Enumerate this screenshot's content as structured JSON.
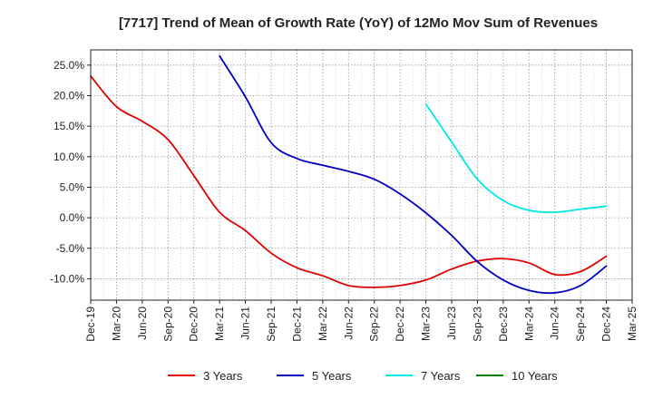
{
  "chart_data": {
    "type": "line",
    "title": "[7717]  Trend of Mean of Growth Rate (YoY) of 12Mo Mov Sum of Revenues",
    "xlabel": "",
    "ylabel": "",
    "x_ticks": [
      "Dec-19",
      "Mar-20",
      "Jun-20",
      "Sep-20",
      "Dec-20",
      "Mar-21",
      "Jun-21",
      "Sep-21",
      "Dec-21",
      "Mar-22",
      "Jun-22",
      "Sep-22",
      "Dec-22",
      "Mar-23",
      "Jun-23",
      "Sep-23",
      "Dec-23",
      "Mar-24",
      "Jun-24",
      "Sep-24",
      "Dec-24",
      "Mar-25"
    ],
    "y_ticks": [
      "25.0%",
      "20.0%",
      "15.0%",
      "10.0%",
      "5.0%",
      "0.0%",
      "-5.0%",
      "-10.0%"
    ],
    "y_tick_values": [
      25,
      20,
      15,
      10,
      5,
      0,
      -5,
      -10
    ],
    "ylim": [
      -13.5,
      27.5
    ],
    "x_range": [
      0,
      21
    ],
    "grid": true,
    "legend_position": "bottom",
    "series": [
      {
        "name": "3 Years",
        "color": "#e00000",
        "x": [
          0,
          1,
          2,
          3,
          4,
          5,
          6,
          7,
          8,
          9,
          10,
          11,
          12,
          13,
          14,
          15,
          16,
          17,
          18,
          19,
          20
        ],
        "values": [
          23.2,
          18.2,
          15.8,
          12.8,
          6.9,
          0.9,
          -2.1,
          -5.8,
          -8.2,
          -9.5,
          -11.1,
          -11.4,
          -11.1,
          -10.2,
          -8.4,
          -7.1,
          -6.7,
          -7.4,
          -9.3,
          -8.8,
          -6.3
        ]
      },
      {
        "name": "5 Years",
        "color": "#0000c0",
        "x": [
          5,
          6,
          7,
          8,
          9,
          10,
          11,
          12,
          13,
          14,
          15,
          16,
          17,
          18,
          19,
          20
        ],
        "values": [
          26.5,
          19.8,
          12.3,
          9.7,
          8.6,
          7.6,
          6.3,
          3.9,
          0.8,
          -2.9,
          -7.2,
          -10.2,
          -11.9,
          -12.3,
          -11.1,
          -7.9
        ]
      },
      {
        "name": "7 Years",
        "color": "#00e8e8",
        "x": [
          13,
          14,
          15,
          16,
          17,
          18,
          19,
          20
        ],
        "values": [
          18.6,
          12.4,
          6.3,
          2.8,
          1.2,
          0.9,
          1.4,
          1.9
        ]
      },
      {
        "name": "10 Years",
        "color": "#008000",
        "x": [],
        "values": []
      }
    ]
  }
}
